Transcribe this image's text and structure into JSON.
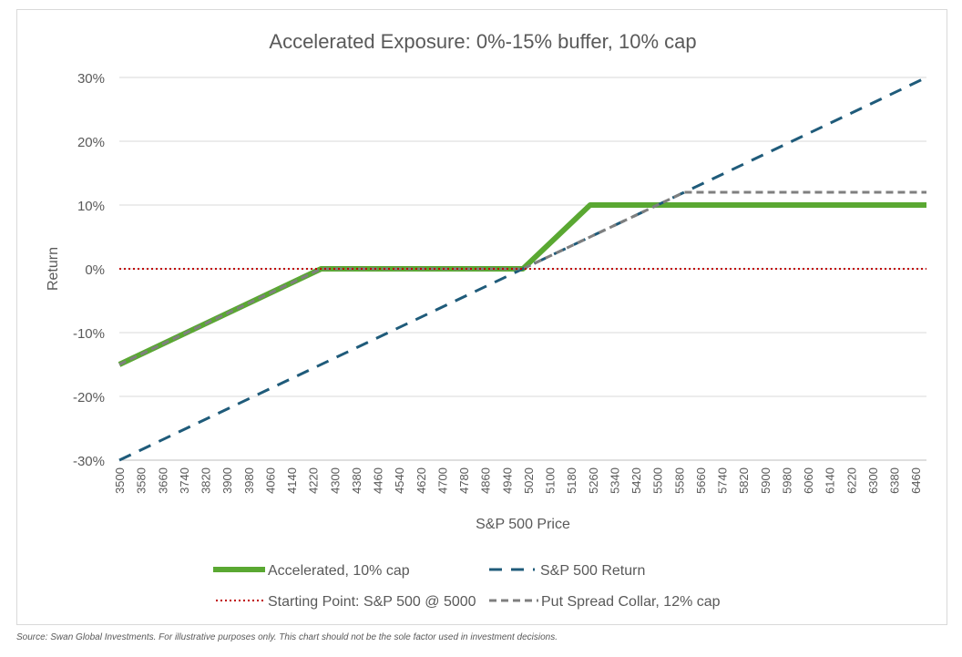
{
  "chart_data": {
    "type": "line",
    "title": "Accelerated Exposure: 0%-15% buffer, 10% cap",
    "xlabel": "S&P 500 Price",
    "ylabel": "Return",
    "xlim": [
      3500,
      6500
    ],
    "ylim": [
      -30,
      30
    ],
    "x_ticks": [
      3500,
      3580,
      3660,
      3740,
      3820,
      3900,
      3980,
      4060,
      4140,
      4220,
      4300,
      4380,
      4460,
      4540,
      4620,
      4700,
      4780,
      4860,
      4940,
      5020,
      5100,
      5180,
      5260,
      5340,
      5420,
      5500,
      5580,
      5660,
      5740,
      5820,
      5900,
      5980,
      6060,
      6140,
      6220,
      6300,
      6380,
      6460
    ],
    "y_ticks": [
      -30,
      -20,
      -10,
      0,
      10,
      20,
      30
    ],
    "y_tick_labels": [
      "-30%",
      "-20%",
      "-10%",
      "0%",
      "10%",
      "20%",
      "30%"
    ],
    "grid": true,
    "legend_position": "bottom",
    "series": [
      {
        "name": "Accelerated, 10% cap",
        "color": "#5aa832",
        "style": "solid",
        "points": [
          [
            3500,
            -15
          ],
          [
            4250,
            0
          ],
          [
            5000,
            0
          ],
          [
            5250,
            10
          ],
          [
            6500,
            10
          ]
        ]
      },
      {
        "name": "S&P 500 Return",
        "color": "#1f5b7a",
        "style": "dashed",
        "points": [
          [
            3500,
            -30
          ],
          [
            6500,
            30
          ]
        ]
      },
      {
        "name": "Starting Point: S&P 500 @ 5000",
        "color": "#c00000",
        "style": "dotted",
        "points": [
          [
            3500,
            0
          ],
          [
            6500,
            0
          ]
        ]
      },
      {
        "name": "Put Spread Collar, 12% cap",
        "color": "#7f7f7f",
        "style": "dashed",
        "points": [
          [
            3500,
            -15
          ],
          [
            4250,
            0
          ],
          [
            5000,
            0
          ],
          [
            5600,
            12
          ],
          [
            6500,
            12
          ]
        ]
      }
    ]
  },
  "footer": {
    "source": "Source: Swan Global Investments. For illustrative purposes only. This chart should not be the sole factor used in investment decisions."
  }
}
